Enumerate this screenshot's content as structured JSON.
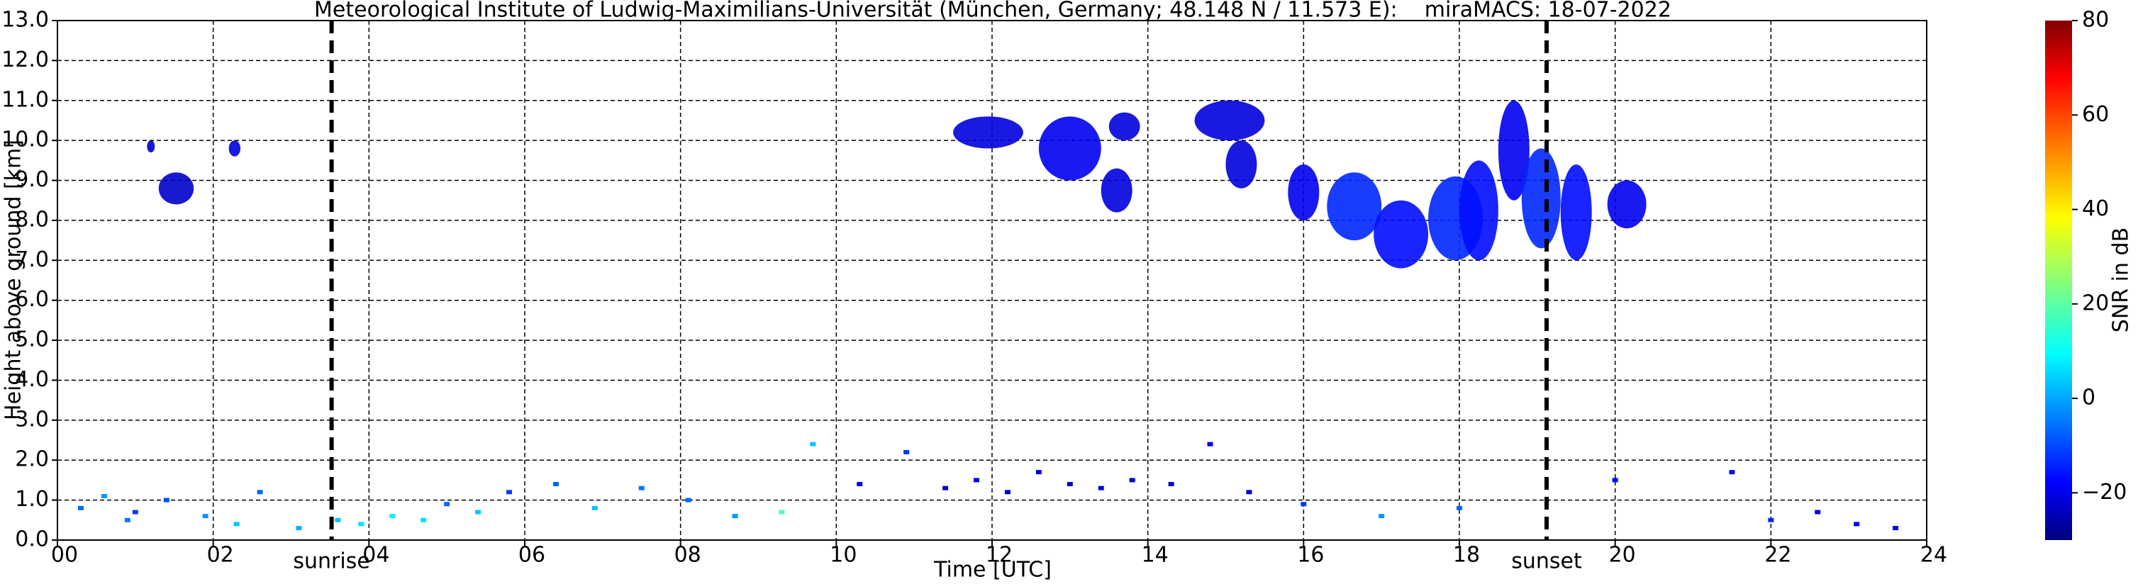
{
  "chart_data": {
    "type": "radar",
    "title": "Meteorological Institute of Ludwig-Maximilians-Universität (München, Germany; 48.148 N / 11.573 E):    miraMACS: 18-07-2022",
    "x_label": "Time [UTC]",
    "y_label": "Height above ground [km]",
    "colorbar_label": "SNR in dB",
    "xlim": [
      0,
      24
    ],
    "xticks": [
      {
        "value": 0,
        "label": "00"
      },
      {
        "value": 2,
        "label": "02"
      },
      {
        "value": 4,
        "label": "04"
      },
      {
        "value": 6,
        "label": "06"
      },
      {
        "value": 8,
        "label": "08"
      },
      {
        "value": 10,
        "label": "10"
      },
      {
        "value": 12,
        "label": "12"
      },
      {
        "value": 14,
        "label": "14"
      },
      {
        "value": 16,
        "label": "16"
      },
      {
        "value": 18,
        "label": "18"
      },
      {
        "value": 20,
        "label": "20"
      },
      {
        "value": 22,
        "label": "22"
      },
      {
        "value": 24,
        "label": "24"
      }
    ],
    "ylim": [
      0,
      13
    ],
    "yticks": [
      {
        "value": 0,
        "label": "0.0"
      },
      {
        "value": 1,
        "label": "1.0"
      },
      {
        "value": 2,
        "label": "2.0"
      },
      {
        "value": 3,
        "label": "3.0"
      },
      {
        "value": 4,
        "label": "4.0"
      },
      {
        "value": 5,
        "label": "5.0"
      },
      {
        "value": 6,
        "label": "6.0"
      },
      {
        "value": 7,
        "label": "7.0"
      },
      {
        "value": 8,
        "label": "8.0"
      },
      {
        "value": 9,
        "label": "9.0"
      },
      {
        "value": 10,
        "label": "10.0"
      },
      {
        "value": 11,
        "label": "11.0"
      },
      {
        "value": 12,
        "label": "12.0"
      },
      {
        "value": 13,
        "label": "13.0"
      }
    ],
    "clim": [
      -30,
      80
    ],
    "cticks": [
      {
        "value": -20,
        "label": "−20"
      },
      0,
      20,
      40,
      60,
      80
    ],
    "grid": true,
    "events": [
      {
        "value": 3.52,
        "label": "sunrise"
      },
      {
        "value": 19.12,
        "label": "sunset"
      }
    ],
    "patches": [
      {
        "t0": 1.3,
        "t1": 1.75,
        "h0": 8.4,
        "h1": 9.2,
        "snr": -22
      },
      {
        "t0": 1.15,
        "t1": 1.25,
        "h0": 9.7,
        "h1": 10.0,
        "snr": -22
      },
      {
        "t0": 2.2,
        "t1": 2.35,
        "h0": 9.6,
        "h1": 10.0,
        "snr": -20
      },
      {
        "t0": 11.5,
        "t1": 12.4,
        "h0": 9.8,
        "h1": 10.6,
        "snr": -20
      },
      {
        "t0": 12.6,
        "t1": 13.4,
        "h0": 9.0,
        "h1": 10.6,
        "snr": -18
      },
      {
        "t0": 13.4,
        "t1": 13.8,
        "h0": 8.2,
        "h1": 9.3,
        "snr": -20
      },
      {
        "t0": 13.5,
        "t1": 13.9,
        "h0": 10.0,
        "h1": 10.7,
        "snr": -20
      },
      {
        "t0": 14.6,
        "t1": 15.5,
        "h0": 10.0,
        "h1": 11.0,
        "snr": -20
      },
      {
        "t0": 15.0,
        "t1": 15.4,
        "h0": 8.8,
        "h1": 10.0,
        "snr": -20
      },
      {
        "t0": 15.8,
        "t1": 16.2,
        "h0": 8.0,
        "h1": 9.4,
        "snr": -18
      },
      {
        "t0": 16.3,
        "t1": 17.0,
        "h0": 7.5,
        "h1": 9.2,
        "snr": -12
      },
      {
        "t0": 16.9,
        "t1": 17.6,
        "h0": 6.8,
        "h1": 8.5,
        "snr": -15
      },
      {
        "t0": 17.6,
        "t1": 18.3,
        "h0": 7.0,
        "h1": 9.1,
        "snr": -12
      },
      {
        "t0": 18.0,
        "t1": 18.5,
        "h0": 7.0,
        "h1": 9.5,
        "snr": -15
      },
      {
        "t0": 18.5,
        "t1": 18.9,
        "h0": 8.5,
        "h1": 11.0,
        "snr": -18
      },
      {
        "t0": 18.8,
        "t1": 19.3,
        "h0": 7.3,
        "h1": 9.8,
        "snr": -12
      },
      {
        "t0": 19.3,
        "t1": 19.7,
        "h0": 7.0,
        "h1": 9.4,
        "snr": -15
      },
      {
        "t0": 19.9,
        "t1": 20.4,
        "h0": 7.8,
        "h1": 9.0,
        "snr": -18
      }
    ],
    "clutter": {
      "x": [
        0.3,
        0.6,
        0.9,
        1.0,
        1.4,
        1.9,
        2.3,
        2.6,
        3.1,
        3.6,
        3.9,
        4.3,
        4.7,
        5.0,
        5.4,
        5.8,
        6.4,
        6.9,
        7.5,
        8.1,
        8.7,
        9.3,
        9.7,
        10.3,
        10.9,
        11.4,
        11.8,
        12.2,
        12.6,
        13.0,
        13.4,
        13.8,
        14.3,
        14.8,
        15.3,
        16.0,
        17.0,
        18.0,
        20.0,
        21.5,
        22.0,
        22.6,
        23.1,
        23.6
      ],
      "y": [
        0.8,
        1.1,
        0.5,
        0.7,
        1.0,
        0.6,
        0.4,
        1.2,
        0.3,
        0.5,
        0.4,
        0.6,
        0.5,
        0.9,
        0.7,
        1.2,
        1.4,
        0.8,
        1.3,
        1.0,
        0.6,
        0.7,
        2.4,
        1.4,
        2.2,
        1.3,
        1.5,
        1.2,
        1.7,
        1.4,
        1.3,
        1.5,
        1.4,
        2.4,
        1.2,
        0.9,
        0.6,
        0.8,
        1.5,
        1.7,
        0.5,
        0.7,
        0.4,
        0.3
      ],
      "snr": [
        -5,
        0,
        -3,
        -10,
        -8,
        0,
        5,
        -5,
        3,
        5,
        8,
        10,
        8,
        -5,
        5,
        -10,
        -5,
        5,
        -3,
        -5,
        0,
        20,
        5,
        -18,
        -10,
        -20,
        -20,
        -22,
        -20,
        -22,
        -20,
        -22,
        -20,
        -18,
        -20,
        -10,
        0,
        -5,
        -15,
        -15,
        -12,
        -20,
        -18,
        -20
      ]
    }
  }
}
